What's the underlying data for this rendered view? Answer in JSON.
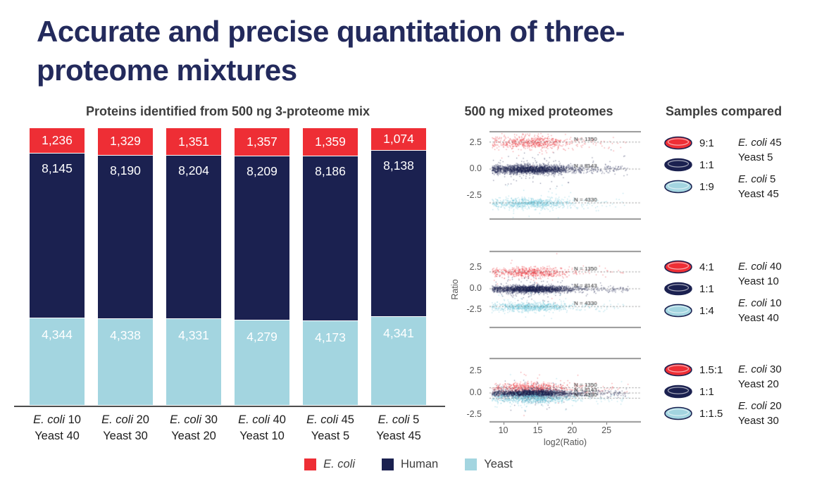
{
  "title": "Accurate and precise quantitation of three-proteome mixtures",
  "chart_data": [
    {
      "type": "bar",
      "stacked": true,
      "title": "Proteins identified from 500 ng 3-proteome mix",
      "categories": [
        {
          "species": "E. coli",
          "amount": "10",
          "line2": "Yeast 40"
        },
        {
          "species": "E. coli",
          "amount": "20",
          "line2": "Yeast 30"
        },
        {
          "species": "E. coli",
          "amount": "30",
          "line2": "Yeast 20"
        },
        {
          "species": "E. coli",
          "amount": "40",
          "line2": "Yeast 10"
        },
        {
          "species": "E. coli",
          "amount": "45",
          "line2": "Yeast 5"
        },
        {
          "species": "E. coli",
          "amount": "5",
          "line2": "Yeast 45"
        }
      ],
      "series": [
        {
          "name": "E. coli",
          "color": "#ee2e35",
          "values": [
            1236,
            1329,
            1351,
            1357,
            1359,
            1074
          ],
          "labels": [
            "1,236",
            "1,329",
            "1,351",
            "1,357",
            "1,359",
            "1,074"
          ]
        },
        {
          "name": "Human",
          "color": "#1b2150",
          "values": [
            8145,
            8190,
            8204,
            8209,
            8186,
            8138
          ],
          "labels": [
            "8,145",
            "8,190",
            "8,204",
            "8,209",
            "8,186",
            "8,138"
          ]
        },
        {
          "name": "Yeast",
          "color": "#a3d5e0",
          "values": [
            4344,
            4338,
            4331,
            4279,
            4173,
            4341
          ],
          "labels": [
            "4,344",
            "4,338",
            "4,331",
            "4,279",
            "4,173",
            "4,341"
          ]
        }
      ],
      "legend": [
        {
          "label": "E. coli",
          "italic": true,
          "color": "#ee2e35"
        },
        {
          "label": "Human",
          "italic": false,
          "color": "#1b2150"
        },
        {
          "label": "Yeast",
          "italic": false,
          "color": "#a3d5e0"
        }
      ]
    },
    {
      "type": "scatter",
      "title": "500 ng mixed proteomes",
      "ylabel": "Ratio",
      "xlabel": "log2(Ratio)",
      "x_range": [
        8,
        30
      ],
      "xticks": [
        10,
        15,
        20,
        25
      ],
      "yticks": [
        2.5,
        0,
        -2.5
      ],
      "plots": [
        {
          "clusters": [
            {
              "name": "E. coli",
              "color": "#ee2e35",
              "center": 2.55,
              "n_label": "N = 1350"
            },
            {
              "name": "Human",
              "color": "#1b2150",
              "center": 0,
              "n_label": "N = 8143"
            },
            {
              "name": "Yeast",
              "color": "#6cc6da",
              "center": -3.2,
              "n_label": "N = 4330"
            }
          ]
        },
        {
          "clusters": [
            {
              "name": "E. coli",
              "color": "#ee2e35",
              "center": 2.0,
              "n_label": "N = 1350"
            },
            {
              "name": "Human",
              "color": "#1b2150",
              "center": 0,
              "n_label": "N = 8143"
            },
            {
              "name": "Yeast",
              "color": "#6cc6da",
              "center": -2.1,
              "n_label": "N = 4330"
            }
          ]
        },
        {
          "clusters": [
            {
              "name": "E. coli",
              "color": "#ee2e35",
              "center": 0.6,
              "n_label": "N = 1350"
            },
            {
              "name": "Human",
              "color": "#1b2150",
              "center": 0,
              "n_label": "N = 8143"
            },
            {
              "name": "Yeast",
              "color": "#6cc6da",
              "center": -0.6,
              "n_label": "N = 4330"
            }
          ]
        }
      ]
    }
  ],
  "samples_compared": {
    "title": "Samples compared",
    "groups": [
      {
        "rows": [
          {
            "color": "#ee2e35",
            "ratio": "9:1"
          },
          {
            "color": "#1b2150",
            "ratio": "1:1"
          },
          {
            "color": "#a3d5e0",
            "ratio": "1:9"
          }
        ],
        "labels": [
          {
            "species": "E. coli",
            "amount": "45",
            "line2": "Yeast 5"
          },
          {
            "species": "E. coli",
            "amount": "5",
            "line2": "Yeast 45"
          }
        ]
      },
      {
        "rows": [
          {
            "color": "#ee2e35",
            "ratio": "4:1"
          },
          {
            "color": "#1b2150",
            "ratio": "1:1"
          },
          {
            "color": "#a3d5e0",
            "ratio": "1:4"
          }
        ],
        "labels": [
          {
            "species": "E. coli",
            "amount": "40",
            "line2": "Yeast 10"
          },
          {
            "species": "E. coli",
            "amount": "10",
            "line2": "Yeast 40"
          }
        ]
      },
      {
        "rows": [
          {
            "color": "#ee2e35",
            "ratio": "1.5:1"
          },
          {
            "color": "#1b2150",
            "ratio": "1:1"
          },
          {
            "color": "#a3d5e0",
            "ratio": "1:1.5"
          }
        ],
        "labels": [
          {
            "species": "E. coli",
            "amount": "30",
            "line2": "Yeast 20"
          },
          {
            "species": "E. coli",
            "amount": "20",
            "line2": "Yeast 30"
          }
        ]
      }
    ]
  }
}
